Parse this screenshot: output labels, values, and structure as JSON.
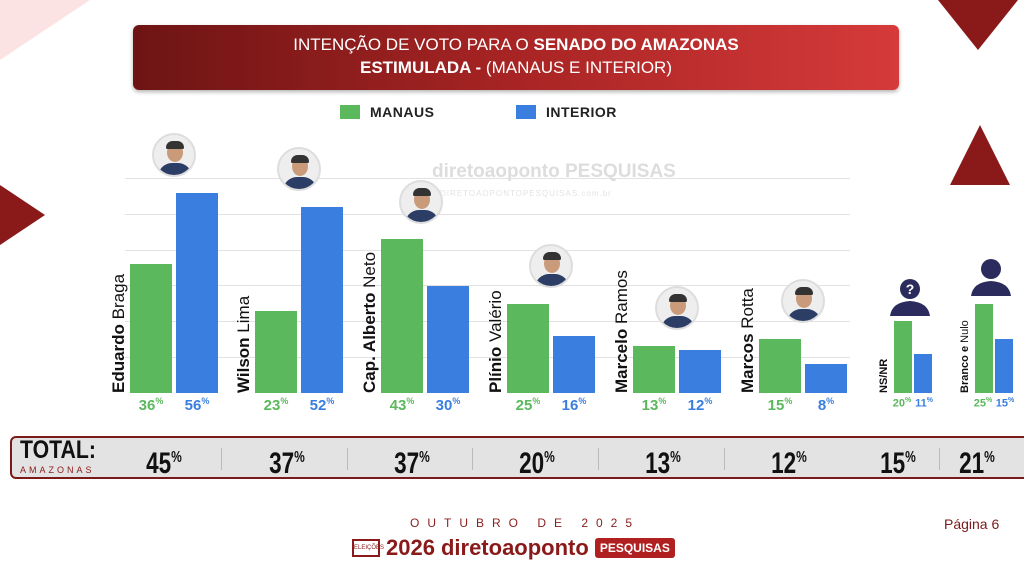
{
  "header": {
    "title_prefix": "INTENÇÃO DE VOTO PARA O ",
    "title_bold": "SENADO DO AMAZONAS",
    "subtitle_bold": "ESTIMULADA - ",
    "subtitle_rest": "(MANAUS E INTERIOR)"
  },
  "watermark": {
    "brand": "diretoaoponto PESQUISAS",
    "site": "DIRETOAOPONTOPESQUISAS.com.br"
  },
  "chart_data": {
    "type": "bar",
    "title": "INTENÇÃO DE VOTO PARA O SENADO DO AMAZONAS - ESTIMULADA (MANAUS E INTERIOR)",
    "categories": [
      "Eduardo Braga",
      "Wilson Lima",
      "Cap. Alberto Neto",
      "Plínio Valério",
      "Marcelo Ramos",
      "Marcos Rotta",
      "NS/NR",
      "Branco e Nulo"
    ],
    "name_bold": [
      "Eduardo",
      "Wilson",
      "Cap. Alberto",
      "Plínio",
      "Marcelo",
      "Marcos",
      "NS/NR",
      "Branco e"
    ],
    "name_rest": [
      " Braga",
      "  Lima",
      " Neto",
      " Valério",
      " Ramos",
      " Rotta",
      "",
      " Nulo"
    ],
    "series": [
      {
        "name": "MANAUS",
        "color": "#5cb85c",
        "values": [
          36,
          23,
          43,
          25,
          13,
          15,
          20,
          25
        ]
      },
      {
        "name": "INTERIOR",
        "color": "#3a7fe0",
        "values": [
          56,
          52,
          30,
          16,
          12,
          8,
          11,
          15
        ]
      }
    ],
    "value_labels": [
      [
        "36",
        "56"
      ],
      [
        "23",
        "52"
      ],
      [
        "43",
        "30"
      ],
      [
        "25",
        "16"
      ],
      [
        "13",
        "12"
      ],
      [
        "15",
        "8"
      ],
      [
        "20",
        "11"
      ],
      [
        "25",
        "15"
      ]
    ],
    "percent_sign": "%",
    "ylim": [
      0,
      60
    ],
    "legend": "top-center",
    "grid": true
  },
  "total": {
    "label": "TOTAL:",
    "sublabel": "AMAZONAS",
    "values": [
      "45",
      "37",
      "37",
      "20",
      "13",
      "12",
      "15",
      "21"
    ]
  },
  "footer": {
    "date": "OUTUBRO DE 2025",
    "page": "Página 6",
    "logo_year": "2026",
    "logo_brand": "diretoaoponto",
    "logo_tag": "PESQUISAS",
    "logo_box": "ELEIÇÕES"
  }
}
